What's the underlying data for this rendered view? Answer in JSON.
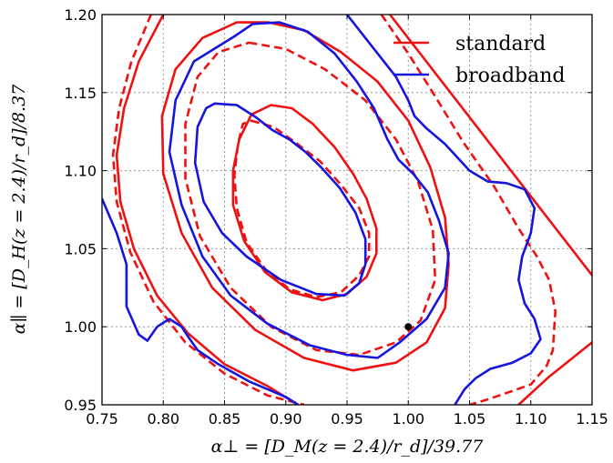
{
  "chart_data": {
    "type": "line",
    "title": "",
    "xlabel": "α⊥ = [D_M(z = 2.4)/r_d]/39.77",
    "ylabel": "α∥ = [D_H(z = 2.4)/r_d]/8.37",
    "xlim": [
      0.75,
      1.15
    ],
    "ylim": [
      0.95,
      1.2
    ],
    "xticks": [
      "0.75",
      "0.80",
      "0.85",
      "0.90",
      "0.95",
      "1.00",
      "1.05",
      "1.10",
      "1.15"
    ],
    "yticks": [
      "0.95",
      "1.00",
      "1.05",
      "1.10",
      "1.15",
      "1.20"
    ],
    "grid": true,
    "legend_position": "top-right",
    "legend": [
      {
        "label": "standard",
        "color": "#ee1111"
      },
      {
        "label": "broadband",
        "color": "#1515dd"
      }
    ],
    "marker": {
      "x": 1.0,
      "y": 1.0,
      "color": "#000000"
    },
    "series": [
      {
        "group": "standard",
        "color": "#ee1111",
        "style": "solid",
        "closed": true,
        "points": [
          [
            0.888,
            1.142
          ],
          [
            0.905,
            1.14
          ],
          [
            0.922,
            1.13
          ],
          [
            0.94,
            1.115
          ],
          [
            0.955,
            1.098
          ],
          [
            0.966,
            1.082
          ],
          [
            0.974,
            1.063
          ],
          [
            0.974,
            1.047
          ],
          [
            0.966,
            1.032
          ],
          [
            0.95,
            1.021
          ],
          [
            0.93,
            1.017
          ],
          [
            0.905,
            1.022
          ],
          [
            0.883,
            1.035
          ],
          [
            0.866,
            1.055
          ],
          [
            0.857,
            1.078
          ],
          [
            0.857,
            1.1
          ],
          [
            0.862,
            1.12
          ],
          [
            0.872,
            1.136
          ]
        ]
      },
      {
        "group": "standard",
        "color": "#ee1111",
        "style": "dashed",
        "closed": true,
        "points": [
          [
            0.872,
            1.132
          ],
          [
            0.89,
            1.128
          ],
          [
            0.908,
            1.118
          ],
          [
            0.928,
            1.106
          ],
          [
            0.945,
            1.091
          ],
          [
            0.96,
            1.076
          ],
          [
            0.968,
            1.06
          ],
          [
            0.968,
            1.045
          ],
          [
            0.96,
            1.033
          ],
          [
            0.945,
            1.022
          ],
          [
            0.925,
            1.019
          ],
          [
            0.903,
            1.024
          ],
          [
            0.884,
            1.036
          ],
          [
            0.868,
            1.054
          ],
          [
            0.86,
            1.076
          ],
          [
            0.858,
            1.097
          ],
          [
            0.861,
            1.117
          ],
          [
            0.865,
            1.13
          ]
        ]
      },
      {
        "group": "standard",
        "color": "#ee1111",
        "style": "solid",
        "closed": true,
        "points": [
          [
            0.886,
            1.195
          ],
          [
            0.915,
            1.19
          ],
          [
            0.945,
            1.176
          ],
          [
            0.975,
            1.157
          ],
          [
            1.0,
            1.132
          ],
          [
            1.018,
            1.102
          ],
          [
            1.03,
            1.07
          ],
          [
            1.033,
            1.04
          ],
          [
            1.03,
            1.012
          ],
          [
            1.015,
            0.99
          ],
          [
            0.99,
            0.977
          ],
          [
            0.955,
            0.972
          ],
          [
            0.915,
            0.98
          ],
          [
            0.875,
            0.998
          ],
          [
            0.84,
            1.025
          ],
          [
            0.815,
            1.06
          ],
          [
            0.8,
            1.098
          ],
          [
            0.799,
            1.135
          ],
          [
            0.81,
            1.165
          ],
          [
            0.832,
            1.185
          ],
          [
            0.86,
            1.195
          ]
        ]
      },
      {
        "group": "standard",
        "color": "#ee1111",
        "style": "dashed",
        "closed": true,
        "points": [
          [
            0.87,
            1.182
          ],
          [
            0.9,
            1.178
          ],
          [
            0.932,
            1.165
          ],
          [
            0.965,
            1.145
          ],
          [
            0.99,
            1.12
          ],
          [
            1.008,
            1.093
          ],
          [
            1.02,
            1.062
          ],
          [
            1.022,
            1.03
          ],
          [
            1.01,
            1.004
          ],
          [
            0.99,
            0.99
          ],
          [
            0.96,
            0.982
          ],
          [
            0.925,
            0.985
          ],
          [
            0.888,
            1.0
          ],
          [
            0.855,
            1.025
          ],
          [
            0.83,
            1.058
          ],
          [
            0.818,
            1.095
          ],
          [
            0.818,
            1.13
          ],
          [
            0.828,
            1.16
          ],
          [
            0.845,
            1.176
          ]
        ]
      },
      {
        "group": "standard",
        "color": "#ee1111",
        "style": "solid",
        "closed": false,
        "points": [
          [
            0.8,
            1.2
          ],
          [
            0.78,
            1.17
          ],
          [
            0.768,
            1.14
          ],
          [
            0.762,
            1.11
          ],
          [
            0.765,
            1.08
          ],
          [
            0.776,
            1.05
          ],
          [
            0.795,
            1.02
          ],
          [
            0.82,
            0.996
          ],
          [
            0.85,
            0.976
          ],
          [
            0.885,
            0.962
          ],
          [
            0.91,
            0.95
          ]
        ]
      },
      {
        "group": "standard",
        "color": "#ee1111",
        "style": "dashed",
        "closed": false,
        "points": [
          [
            0.79,
            1.2
          ],
          [
            0.774,
            1.17
          ],
          [
            0.764,
            1.14
          ],
          [
            0.759,
            1.11
          ],
          [
            0.762,
            1.08
          ],
          [
            0.773,
            1.048
          ],
          [
            0.792,
            1.016
          ],
          [
            0.818,
            0.99
          ],
          [
            0.85,
            0.97
          ],
          [
            0.885,
            0.956
          ],
          [
            0.915,
            0.95
          ]
        ]
      },
      {
        "group": "standard",
        "color": "#ee1111",
        "style": "solid",
        "closed": false,
        "points": [
          [
            0.985,
            1.2
          ],
          [
            1.15,
            1.033
          ]
        ]
      },
      {
        "group": "standard",
        "color": "#ee1111",
        "style": "dashed",
        "closed": false,
        "points": [
          [
            0.978,
            1.2
          ],
          [
            1.0,
            1.175
          ],
          [
            1.02,
            1.15
          ],
          [
            1.045,
            1.118
          ],
          [
            1.07,
            1.09
          ],
          [
            1.09,
            1.063
          ],
          [
            1.105,
            1.045
          ],
          [
            1.115,
            1.03
          ],
          [
            1.12,
            1.01
          ],
          [
            1.118,
            0.985
          ],
          [
            1.113,
            0.975
          ],
          [
            1.1,
            0.963
          ],
          [
            1.078,
            0.957
          ],
          [
            1.063,
            0.953
          ],
          [
            1.05,
            0.95
          ]
        ]
      },
      {
        "group": "standard",
        "color": "#ee1111",
        "style": "solid",
        "closed": false,
        "points": [
          [
            1.15,
            0.99
          ],
          [
            1.115,
            0.968
          ],
          [
            1.09,
            0.95
          ]
        ]
      },
      {
        "group": "broadband",
        "color": "#1515dd",
        "style": "solid",
        "closed": true,
        "points": [
          [
            0.842,
            1.143
          ],
          [
            0.86,
            1.142
          ],
          [
            0.876,
            1.134
          ],
          [
            0.889,
            1.126
          ],
          [
            0.903,
            1.12
          ],
          [
            0.916,
            1.112
          ],
          [
            0.929,
            1.102
          ],
          [
            0.944,
            1.089
          ],
          [
            0.957,
            1.073
          ],
          [
            0.965,
            1.056
          ],
          [
            0.965,
            1.04
          ],
          [
            0.96,
            1.028
          ],
          [
            0.948,
            1.02
          ],
          [
            0.925,
            1.021
          ],
          [
            0.896,
            1.03
          ],
          [
            0.868,
            1.045
          ],
          [
            0.848,
            1.06
          ],
          [
            0.833,
            1.08
          ],
          [
            0.826,
            1.105
          ],
          [
            0.828,
            1.128
          ],
          [
            0.835,
            1.14
          ]
        ]
      },
      {
        "group": "broadband",
        "color": "#1515dd",
        "style": "solid",
        "closed": true,
        "points": [
          [
            0.858,
            1.186
          ],
          [
            0.873,
            1.194
          ],
          [
            0.895,
            1.195
          ],
          [
            0.918,
            1.189
          ],
          [
            0.94,
            1.175
          ],
          [
            0.958,
            1.157
          ],
          [
            0.972,
            1.14
          ],
          [
            0.983,
            1.12
          ],
          [
            0.992,
            1.107
          ],
          [
            1.004,
            1.098
          ],
          [
            1.016,
            1.086
          ],
          [
            1.025,
            1.068
          ],
          [
            1.033,
            1.047
          ],
          [
            1.03,
            1.025
          ],
          [
            1.015,
            1.005
          ],
          [
            0.993,
            0.99
          ],
          [
            0.975,
            0.98
          ],
          [
            0.95,
            0.982
          ],
          [
            0.92,
            0.988
          ],
          [
            0.885,
            1.002
          ],
          [
            0.855,
            1.02
          ],
          [
            0.832,
            1.045
          ],
          [
            0.815,
            1.078
          ],
          [
            0.805,
            1.112
          ],
          [
            0.81,
            1.145
          ],
          [
            0.825,
            1.17
          ]
        ]
      },
      {
        "group": "broadband",
        "color": "#1515dd",
        "style": "solid",
        "closed": false,
        "points": [
          [
            0.75,
            1.082
          ],
          [
            0.762,
            1.06
          ],
          [
            0.77,
            1.04
          ],
          [
            0.77,
            1.013
          ],
          [
            0.78,
            0.995
          ],
          [
            0.787,
            0.991
          ],
          [
            0.795,
            1.0
          ],
          [
            0.805,
            1.005
          ],
          [
            0.815,
            1.0
          ],
          [
            0.82,
            0.994
          ],
          [
            0.828,
            0.985
          ],
          [
            0.845,
            0.976
          ],
          [
            0.87,
            0.965
          ],
          [
            0.9,
            0.955
          ],
          [
            0.91,
            0.95
          ]
        ]
      },
      {
        "group": "broadband",
        "color": "#1515dd",
        "style": "solid",
        "closed": false,
        "points": [
          [
            0.95,
            1.2
          ],
          [
            0.97,
            1.18
          ],
          [
            0.99,
            1.16
          ],
          [
            1.0,
            1.145
          ],
          [
            1.005,
            1.135
          ],
          [
            1.015,
            1.127
          ],
          [
            1.03,
            1.117
          ],
          [
            1.05,
            1.1
          ],
          [
            1.065,
            1.093
          ],
          [
            1.08,
            1.092
          ],
          [
            1.095,
            1.088
          ],
          [
            1.103,
            1.076
          ],
          [
            1.1,
            1.06
          ],
          [
            1.093,
            1.045
          ],
          [
            1.09,
            1.03
          ],
          [
            1.095,
            1.015
          ],
          [
            1.103,
            1.005
          ],
          [
            1.108,
            0.992
          ],
          [
            1.1,
            0.983
          ],
          [
            1.085,
            0.977
          ],
          [
            1.067,
            0.973
          ],
          [
            1.055,
            0.967
          ],
          [
            1.046,
            0.96
          ],
          [
            1.038,
            0.95
          ]
        ]
      }
    ]
  }
}
